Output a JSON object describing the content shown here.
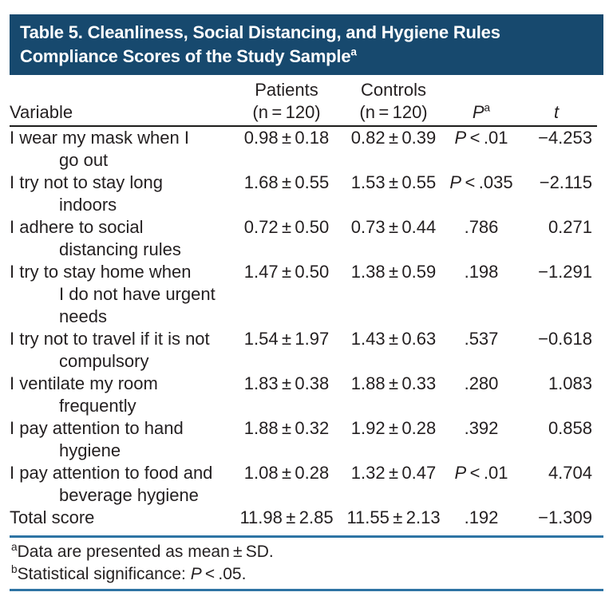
{
  "title": {
    "line1": "Table 5. Cleanliness, Social Distancing, and Hygiene Rules",
    "line2": "Compliance Scores of the Study Sample",
    "superscript": "a"
  },
  "colors": {
    "title_bg": "#17496e",
    "title_text": "#ffffff",
    "rule_blue": "#2e74a4",
    "rule_black": "#1d1d1b",
    "text": "#231f20"
  },
  "table": {
    "headers": {
      "variable": "Variable",
      "patients_line1": "Patients",
      "patients_line2": "(n = 120)",
      "controls_line1": "Controls",
      "controls_line2": "(n = 120)",
      "p": "P",
      "p_sup": "a",
      "t": "t"
    },
    "rows": [
      {
        "variable": "I wear my mask when I\ngo out",
        "patients": "0.98 ± 0.18",
        "controls": "0.82 ± 0.39",
        "p": "P < .01",
        "t": "−4.253"
      },
      {
        "variable": "I try not to stay long\nindoors",
        "patients": "1.68 ± 0.55",
        "controls": "1.53 ± 0.55",
        "p": "P < .035",
        "t": "−2.115"
      },
      {
        "variable": "I adhere to social\ndistancing rules",
        "patients": "0.72 ± 0.50",
        "controls": "0.73 ± 0.44",
        "p": ".786",
        "t": "0.271"
      },
      {
        "variable": "I try to stay home when\nI do not have urgent\nneeds",
        "patients": "1.47 ± 0.50",
        "controls": "1.38 ± 0.59",
        "p": ".198",
        "t": "−1.291"
      },
      {
        "variable": "I try not to travel if it is not\ncompulsory",
        "patients": "1.54 ± 1.97",
        "controls": "1.43 ± 0.63",
        "p": ".537",
        "t": "−0.618"
      },
      {
        "variable": "I ventilate my room\nfrequently",
        "patients": "1.83 ± 0.38",
        "controls": "1.88 ± 0.33",
        "p": ".280",
        "t": "1.083"
      },
      {
        "variable": "I pay attention to hand\nhygiene",
        "patients": "1.88 ± 0.32",
        "controls": "1.92 ± 0.28",
        "p": ".392",
        "t": "0.858"
      },
      {
        "variable": "I pay attention to food and\nbeverage hygiene",
        "patients": "1.08 ± 0.28",
        "controls": "1.32 ± 0.47",
        "p": "P < .01",
        "t": "4.704"
      },
      {
        "variable": "Total score",
        "patients": "11.98 ± 2.85",
        "controls": "11.55 ± 2.13",
        "p": ".192",
        "t": "−1.309"
      }
    ]
  },
  "footnotes": {
    "a": {
      "marker": "a",
      "text": "Data are presented as mean ± SD."
    },
    "b": {
      "marker": "b",
      "text_before": "Statistical significance: ",
      "italic": "P",
      "text_after": " < .05."
    }
  }
}
